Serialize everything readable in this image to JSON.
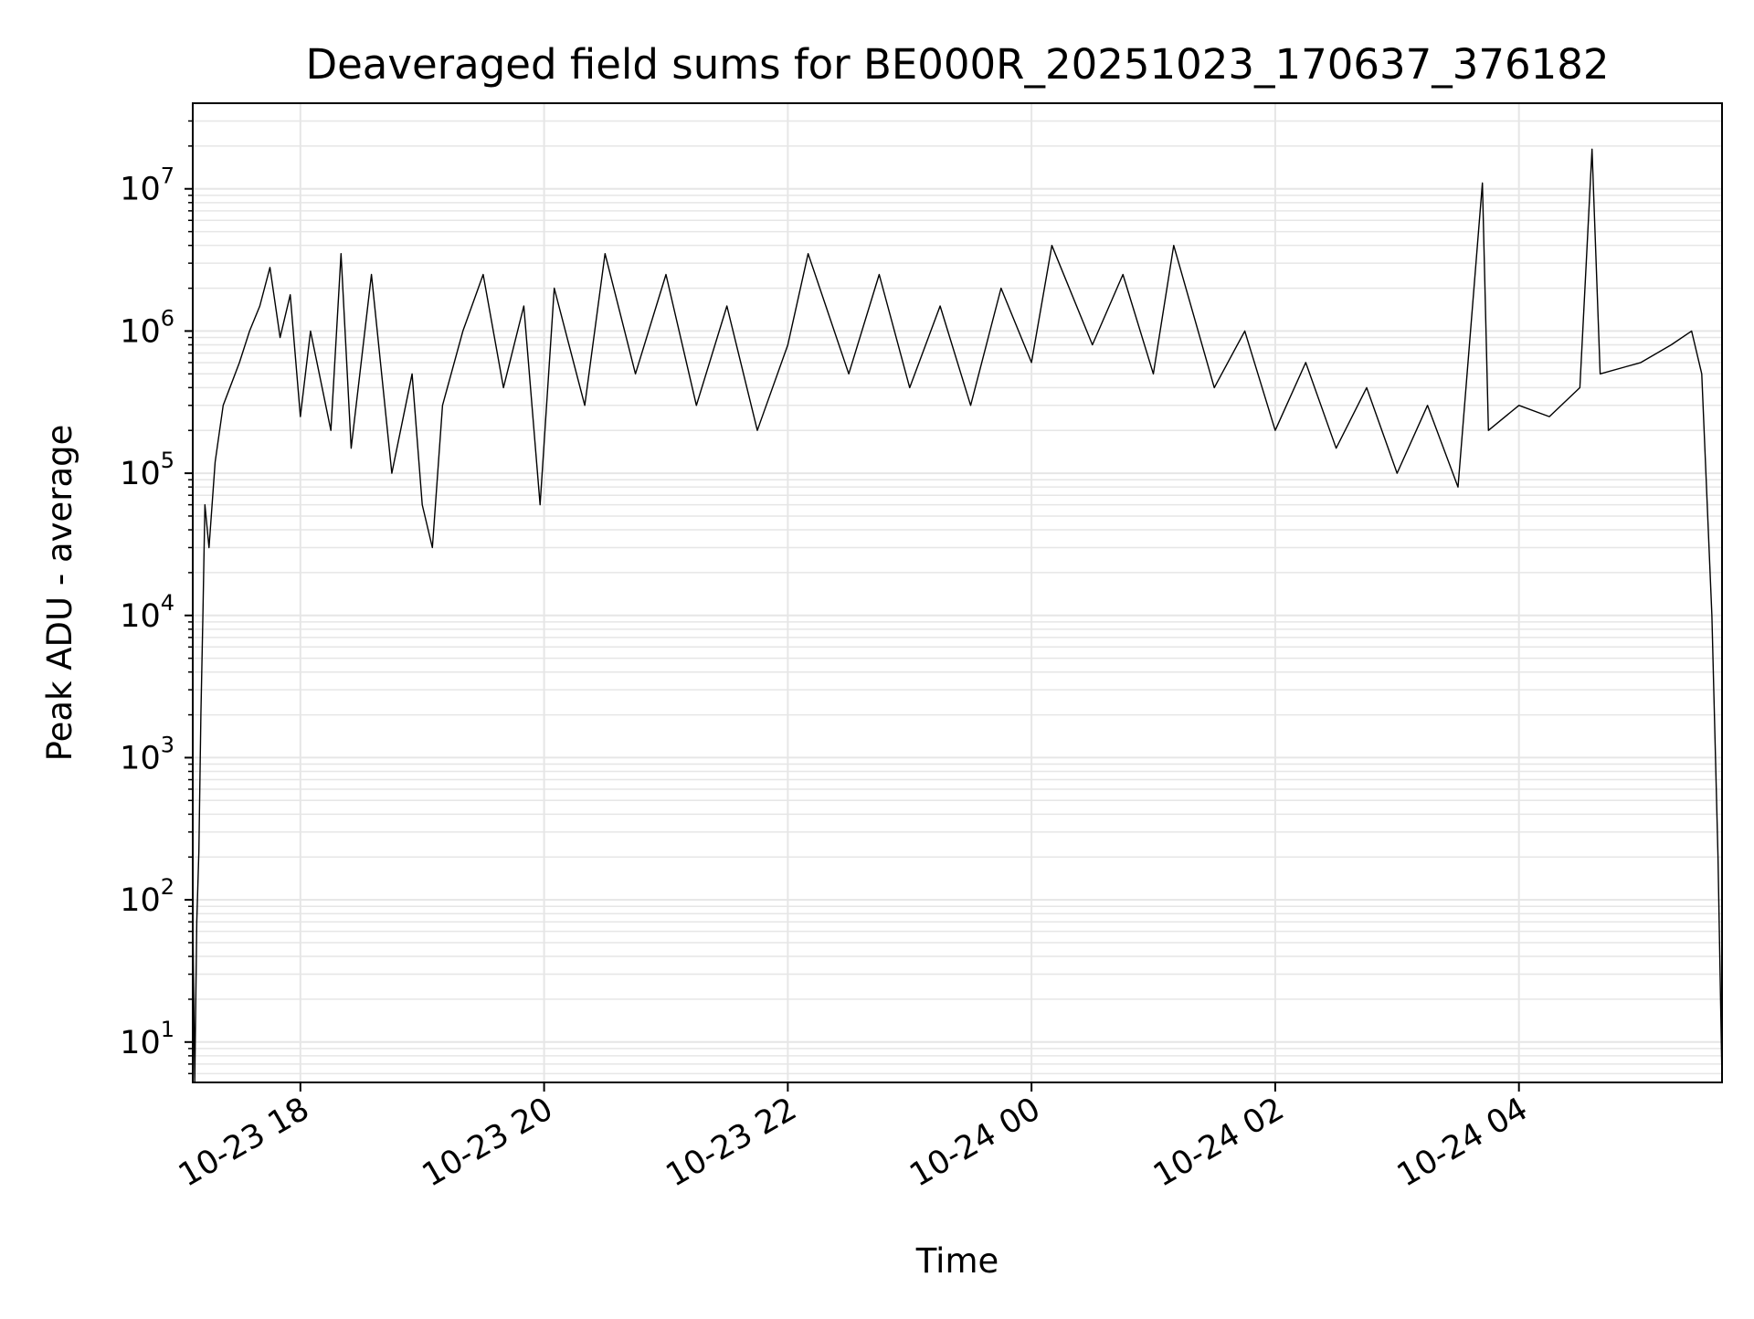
{
  "chart_data": {
    "type": "line",
    "title": "Deaveraged field sums for BE000R_20251023_170637_376182",
    "xlabel": "Time",
    "ylabel": "Peak ADU - average",
    "x_axis": {
      "type": "time",
      "range": [
        "2025-10-23 17:07",
        "2025-10-24 05:40"
      ],
      "ticks": [
        {
          "value": "2025-10-23 18:00",
          "label": "10-23 18"
        },
        {
          "value": "2025-10-23 20:00",
          "label": "10-23 20"
        },
        {
          "value": "2025-10-23 22:00",
          "label": "10-23 22"
        },
        {
          "value": "2025-10-24 00:00",
          "label": "10-24 00"
        },
        {
          "value": "2025-10-24 02:00",
          "label": "10-24 02"
        },
        {
          "value": "2025-10-24 04:00",
          "label": "10-24 04"
        }
      ]
    },
    "y_axis": {
      "scale": "log",
      "range": [
        5.2,
        40000000
      ],
      "ticks": [
        {
          "value": 10,
          "base": "10",
          "exp": "1"
        },
        {
          "value": 100,
          "base": "10",
          "exp": "2"
        },
        {
          "value": 1000,
          "base": "10",
          "exp": "3"
        },
        {
          "value": 10000,
          "base": "10",
          "exp": "4"
        },
        {
          "value": 100000,
          "base": "10",
          "exp": "5"
        },
        {
          "value": 1000000,
          "base": "10",
          "exp": "6"
        },
        {
          "value": 10000000,
          "base": "10",
          "exp": "7"
        }
      ]
    },
    "grid": true,
    "legend": "none",
    "series_color": "#000000",
    "grid_color": "#e6e6e6",
    "series": [
      {
        "points": [
          [
            "2025-10-23 17:07",
            80
          ],
          [
            "2025-10-23 17:08",
            5.3
          ],
          [
            "2025-10-23 17:09",
            70
          ],
          [
            "2025-10-23 17:10",
            220
          ],
          [
            "2025-10-23 17:11",
            2000
          ],
          [
            "2025-10-23 17:12",
            10000
          ],
          [
            "2025-10-23 17:13",
            60000
          ],
          [
            "2025-10-23 17:15",
            30000
          ],
          [
            "2025-10-23 17:18",
            120000
          ],
          [
            "2025-10-23 17:22",
            300000
          ],
          [
            "2025-10-23 17:30",
            600000
          ],
          [
            "2025-10-23 17:35",
            1000000
          ],
          [
            "2025-10-23 17:40",
            1500000
          ],
          [
            "2025-10-23 17:45",
            2800000
          ],
          [
            "2025-10-23 17:50",
            900000
          ],
          [
            "2025-10-23 17:55",
            1800000
          ],
          [
            "2025-10-23 18:00",
            250000
          ],
          [
            "2025-10-23 18:05",
            1000000
          ],
          [
            "2025-10-23 18:15",
            200000
          ],
          [
            "2025-10-23 18:20",
            3500000
          ],
          [
            "2025-10-23 18:25",
            150000
          ],
          [
            "2025-10-23 18:35",
            2500000
          ],
          [
            "2025-10-23 18:45",
            100000
          ],
          [
            "2025-10-23 18:55",
            500000
          ],
          [
            "2025-10-23 19:00",
            60000
          ],
          [
            "2025-10-23 19:05",
            30000
          ],
          [
            "2025-10-23 19:10",
            300000
          ],
          [
            "2025-10-23 19:20",
            1000000
          ],
          [
            "2025-10-23 19:30",
            2500000
          ],
          [
            "2025-10-23 19:40",
            400000
          ],
          [
            "2025-10-23 19:50",
            1500000
          ],
          [
            "2025-10-23 19:58",
            60000
          ],
          [
            "2025-10-23 20:05",
            2000000
          ],
          [
            "2025-10-23 20:20",
            300000
          ],
          [
            "2025-10-23 20:30",
            3500000
          ],
          [
            "2025-10-23 20:45",
            500000
          ],
          [
            "2025-10-23 21:00",
            2500000
          ],
          [
            "2025-10-23 21:15",
            300000
          ],
          [
            "2025-10-23 21:30",
            1500000
          ],
          [
            "2025-10-23 21:45",
            200000
          ],
          [
            "2025-10-23 22:00",
            800000
          ],
          [
            "2025-10-23 22:10",
            3500000
          ],
          [
            "2025-10-23 22:30",
            500000
          ],
          [
            "2025-10-23 22:45",
            2500000
          ],
          [
            "2025-10-23 23:00",
            400000
          ],
          [
            "2025-10-23 23:15",
            1500000
          ],
          [
            "2025-10-23 23:30",
            300000
          ],
          [
            "2025-10-23 23:45",
            2000000
          ],
          [
            "2025-10-24 00:00",
            600000
          ],
          [
            "2025-10-24 00:10",
            4000000
          ],
          [
            "2025-10-24 00:30",
            800000
          ],
          [
            "2025-10-24 00:45",
            2500000
          ],
          [
            "2025-10-24 01:00",
            500000
          ],
          [
            "2025-10-24 01:10",
            4000000
          ],
          [
            "2025-10-24 01:30",
            400000
          ],
          [
            "2025-10-24 01:45",
            1000000
          ],
          [
            "2025-10-24 02:00",
            200000
          ],
          [
            "2025-10-24 02:15",
            600000
          ],
          [
            "2025-10-24 02:30",
            150000
          ],
          [
            "2025-10-24 02:45",
            400000
          ],
          [
            "2025-10-24 03:00",
            100000
          ],
          [
            "2025-10-24 03:15",
            300000
          ],
          [
            "2025-10-24 03:30",
            80000
          ],
          [
            "2025-10-24 03:42",
            11000000
          ],
          [
            "2025-10-24 03:45",
            200000
          ],
          [
            "2025-10-24 04:00",
            300000
          ],
          [
            "2025-10-24 04:15",
            250000
          ],
          [
            "2025-10-24 04:30",
            400000
          ],
          [
            "2025-10-24 04:36",
            19000000
          ],
          [
            "2025-10-24 04:40",
            500000
          ],
          [
            "2025-10-24 05:00",
            600000
          ],
          [
            "2025-10-24 05:15",
            800000
          ],
          [
            "2025-10-24 05:25",
            1000000
          ],
          [
            "2025-10-24 05:30",
            500000
          ],
          [
            "2025-10-24 05:35",
            10000
          ],
          [
            "2025-10-24 05:38",
            200
          ],
          [
            "2025-10-24 05:40",
            5.3
          ]
        ]
      }
    ]
  }
}
